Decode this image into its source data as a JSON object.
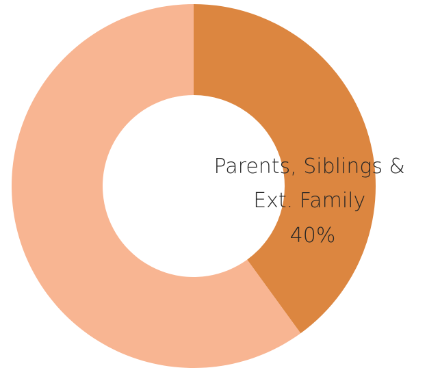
{
  "chart_data": {
    "type": "pie",
    "title": "",
    "categories": [
      "Parents, Siblings & Ext. Family",
      ""
    ],
    "values": [
      40,
      60
    ],
    "colors": [
      "#dc8640",
      "#f8b592"
    ],
    "data_labels": [
      {
        "lines": [
          "Parents, Siblings &",
          "Ext. Family",
          "40%"
        ]
      }
    ],
    "legend": "none",
    "donut": true
  }
}
